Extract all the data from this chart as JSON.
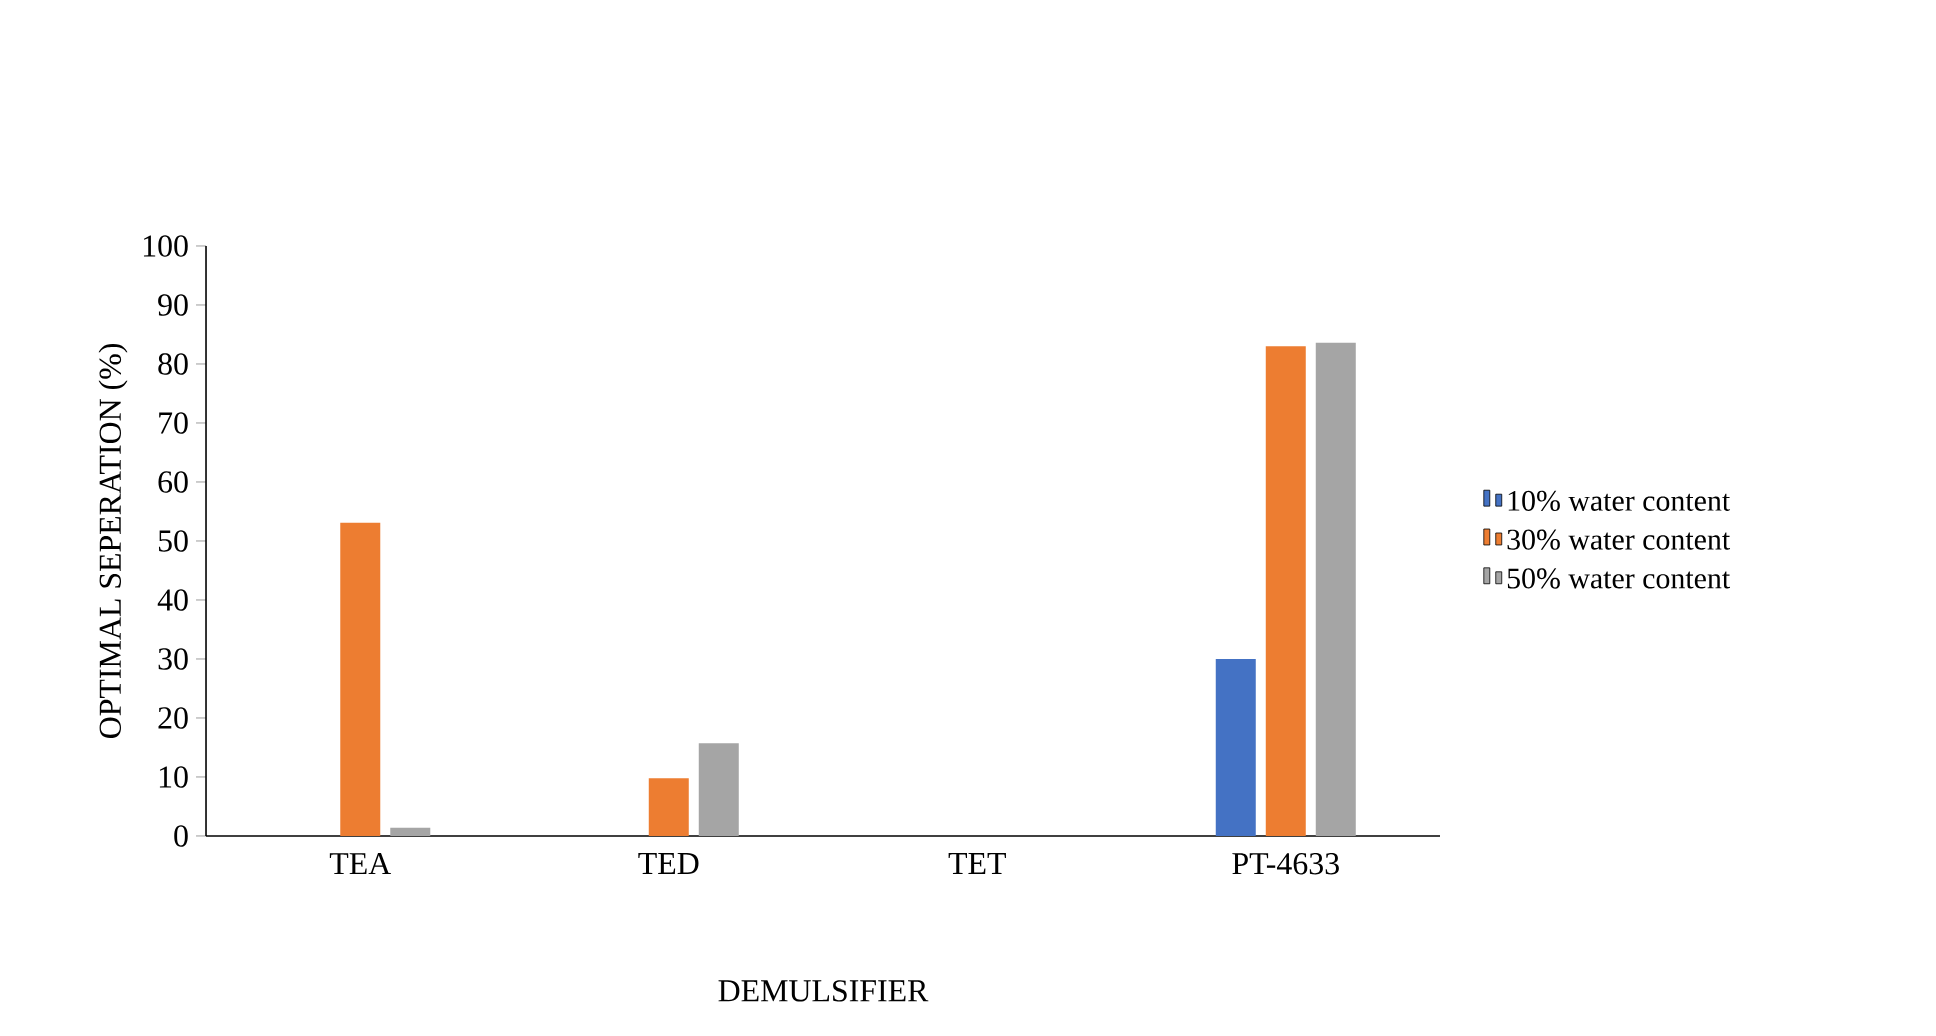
{
  "chart_data": {
    "type": "bar",
    "xlabel": "DEMULSIFIER",
    "ylabel": "OPTIMAL SEPERATION (%)",
    "categories": [
      "TEA",
      "TED",
      "TET",
      "PT-4633"
    ],
    "series": [
      {
        "name": "10% water content",
        "color": "#4472c4",
        "values": [
          0,
          0,
          0,
          30
        ]
      },
      {
        "name": "30% water content",
        "color": "#ed7d31",
        "values": [
          53.1,
          9.8,
          0,
          83
        ]
      },
      {
        "name": "50% water content",
        "color": "#a5a5a5",
        "values": [
          1.4,
          15.7,
          0,
          83.6
        ]
      }
    ],
    "ylim": [
      0,
      100
    ],
    "yticks": [
      0,
      10,
      20,
      30,
      40,
      50,
      60,
      70,
      80,
      90,
      100
    ],
    "grid": false,
    "legend": "right"
  }
}
